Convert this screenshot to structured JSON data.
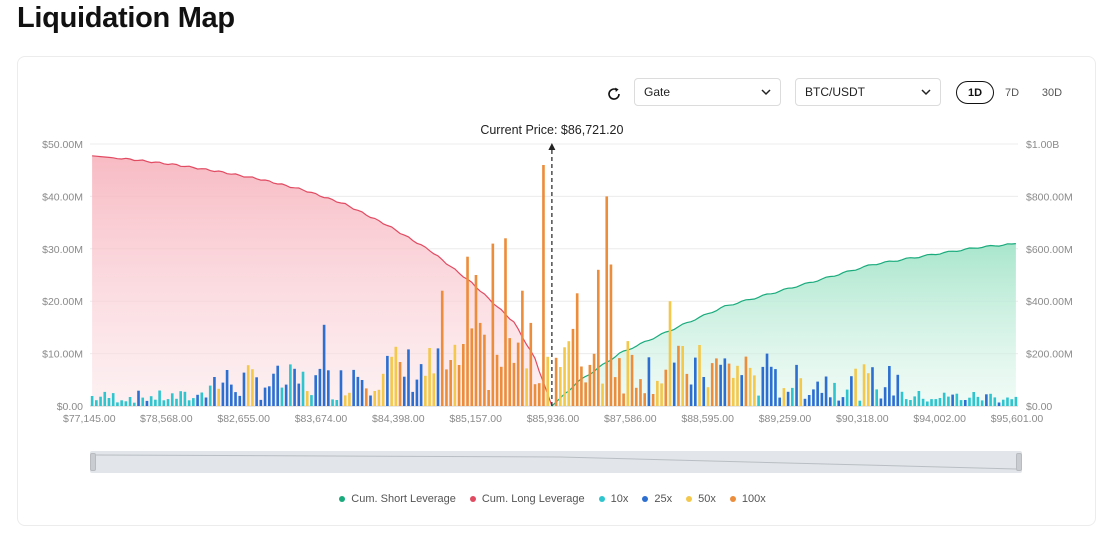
{
  "page": {
    "title": "Liquidation Map"
  },
  "controls": {
    "exchange": "Gate",
    "pair": "BTC/USDT",
    "timeframes": [
      "1D",
      "7D",
      "30D"
    ],
    "active_timeframe": "1D"
  },
  "icons": {
    "refresh": "refresh-icon",
    "caret": "chevron-down-icon"
  },
  "colors": {
    "short": "#1aab7c",
    "long": "#e14b62",
    "x10": "#2ec5cf",
    "x25": "#2c6fd1",
    "x50": "#f3c84b",
    "x100": "#ec8d3c"
  },
  "chart_data": {
    "type": "bar",
    "title": "",
    "current_price_label": "Current Price: $86,721.20",
    "current_price_index": 109,
    "bar_count": 220,
    "y_left": {
      "ticks": [
        "$0.00",
        "$10.00M",
        "$20.00M",
        "$30.00M",
        "$40.00M",
        "$50.00M"
      ],
      "range": [
        0,
        50
      ]
    },
    "y_right": {
      "ticks": [
        "$0.00",
        "$200.00M",
        "$400.00M",
        "$600.00M",
        "$800.00M",
        "$1.00B"
      ],
      "range": [
        0,
        1000
      ]
    },
    "x_ticks": [
      "$77,145.00",
      "$78,568.00",
      "$82,655.00",
      "$83,674.00",
      "$84,398.00",
      "$85,157.00",
      "$85,936.00",
      "$87,586.00",
      "$88,595.00",
      "$89,259.00",
      "$90,318.00",
      "$94,002.00",
      "$95,601.00"
    ],
    "series_bars": [
      {
        "name": "10x",
        "key": "x10"
      },
      {
        "name": "25x",
        "key": "x25"
      },
      {
        "name": "50x",
        "key": "x50"
      },
      {
        "name": "100x",
        "key": "x100"
      }
    ],
    "cum_long": [
      [
        0,
        955
      ],
      [
        10,
        940
      ],
      [
        20,
        920
      ],
      [
        30,
        895
      ],
      [
        40,
        865
      ],
      [
        50,
        825
      ],
      [
        60,
        770
      ],
      [
        70,
        690
      ],
      [
        80,
        595
      ],
      [
        90,
        470
      ],
      [
        100,
        320
      ],
      [
        105,
        180
      ],
      [
        109,
        0
      ]
    ],
    "cum_short": [
      [
        109,
        0
      ],
      [
        115,
        90
      ],
      [
        125,
        200
      ],
      [
        140,
        310
      ],
      [
        150,
        380
      ],
      [
        170,
        470
      ],
      [
        185,
        540
      ],
      [
        200,
        580
      ],
      [
        210,
        605
      ],
      [
        219,
        620
      ]
    ],
    "highlight_bars": [
      {
        "i": 55,
        "s": "x25",
        "v": 15.5
      },
      {
        "i": 83,
        "s": "x100",
        "v": 22
      },
      {
        "i": 89,
        "s": "x100",
        "v": 28.5
      },
      {
        "i": 91,
        "s": "x100",
        "v": 25
      },
      {
        "i": 95,
        "s": "x100",
        "v": 31
      },
      {
        "i": 98,
        "s": "x100",
        "v": 32
      },
      {
        "i": 102,
        "s": "x100",
        "v": 22
      },
      {
        "i": 107,
        "s": "x100",
        "v": 46
      },
      {
        "i": 115,
        "s": "x100",
        "v": 21.5
      },
      {
        "i": 120,
        "s": "x100",
        "v": 26
      },
      {
        "i": 122,
        "s": "x100",
        "v": 40
      },
      {
        "i": 123,
        "s": "x100",
        "v": 27
      },
      {
        "i": 137,
        "s": "x50",
        "v": 20
      },
      {
        "i": 160,
        "s": "x25",
        "v": 10
      }
    ],
    "legend": [
      "Cum. Short Leverage",
      "Cum. Long Leverage",
      "10x",
      "25x",
      "50x",
      "100x"
    ]
  }
}
